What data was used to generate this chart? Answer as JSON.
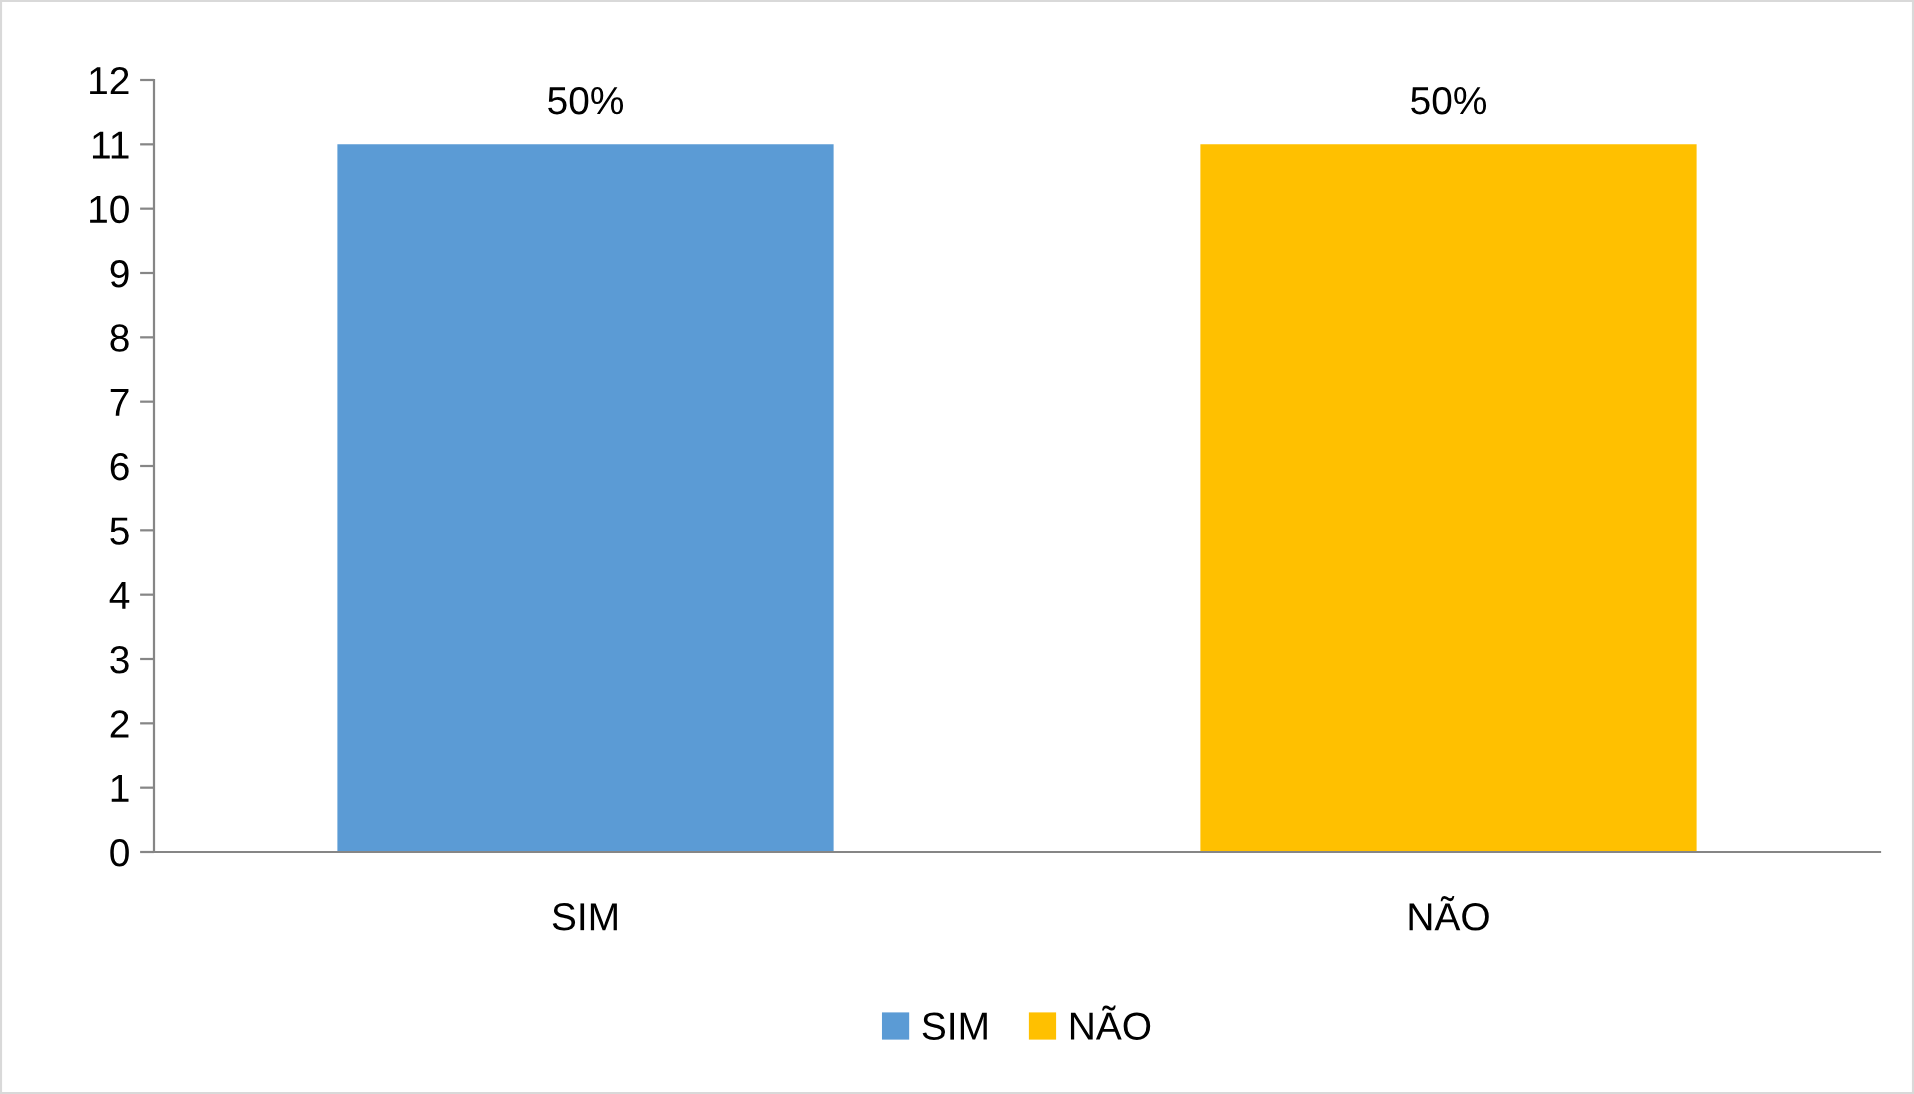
{
  "chart_data": {
    "type": "bar",
    "categories": [
      "SIM",
      "NÃO"
    ],
    "series": [
      {
        "name": "SIM",
        "color": "#5b9bd5",
        "values": [
          11,
          null
        ]
      },
      {
        "name": "NÃO",
        "color": "#ffc000",
        "values": [
          null,
          11
        ]
      }
    ],
    "stacked": true,
    "annotations": [
      {
        "text": "50%",
        "x": "SIM",
        "y": 11
      },
      {
        "text": "50%",
        "x": "NÃO",
        "y": 11
      }
    ],
    "ylim": [
      0,
      12
    ],
    "yticks": [
      0,
      1,
      2,
      3,
      4,
      5,
      6,
      7,
      8,
      9,
      10,
      11,
      12
    ],
    "grid": false,
    "legend": "bottom"
  }
}
